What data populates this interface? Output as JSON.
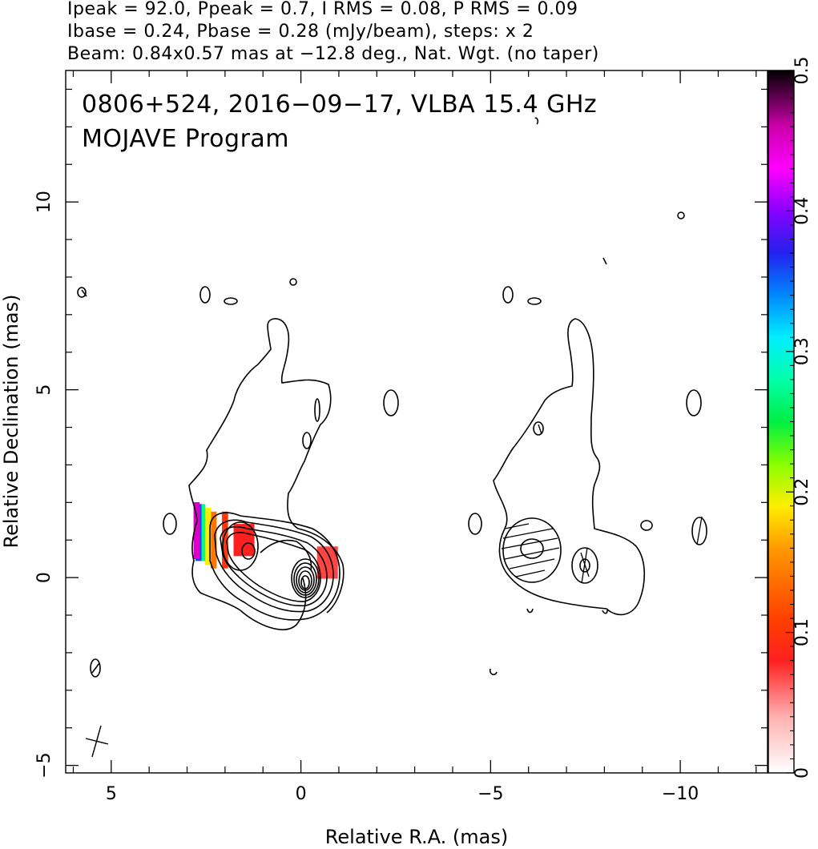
{
  "header": {
    "line1": "Ipeak = 92.0, Ppeak = 0.7, I RMS = 0.08, P RMS = 0.09",
    "line2": "Ibase = 0.24, Pbase = 0.28 (mJy/beam), steps: x 2",
    "line3": "Beam: 0.84x0.57 mas at −12.8 deg., Nat. Wgt. (no taper)"
  },
  "panel": {
    "line1": "0806+524, 2016−09−17, VLBA 15.4 GHz",
    "line2": "MOJAVE Program"
  },
  "chart_data": {
    "type": "contour",
    "xlabel": "Relative R.A. (mas)",
    "ylabel": "Relative Declination (mas)",
    "xlim": [
      6.2,
      -12.3
    ],
    "ylim": [
      -5.2,
      13.5
    ],
    "x_ticks": [
      5,
      0,
      -5,
      -10
    ],
    "x_tick_labels": [
      "5",
      "0",
      "−5",
      "−10"
    ],
    "y_ticks": [
      -5,
      0,
      5,
      10
    ],
    "y_tick_labels": [
      "−5",
      "0",
      "5",
      "10"
    ],
    "colorbar": {
      "min": 0,
      "max": 0.5,
      "ticks": [
        0,
        0.1,
        0.2,
        0.3,
        0.4,
        0.5
      ],
      "tick_labels": [
        "0",
        "0.1",
        "0.2",
        "0.3",
        "0.4",
        "0.5"
      ]
    },
    "total_intensity_panel": {
      "core": [
        0,
        0
      ],
      "contour_levels_mJy_per_beam": [
        0.24,
        0.48,
        0.96,
        1.92,
        3.84,
        7.68,
        15.36,
        30.72,
        61.44
      ],
      "fractional_polarization_patches": [
        {
          "x": -0.7,
          "y": 0.4,
          "value": 0.07
        },
        {
          "x": 1.5,
          "y": 1.0,
          "value": 0.08
        },
        {
          "x": 2.0,
          "y": 1.0,
          "value": 0.1
        },
        {
          "x": 2.3,
          "y": 1.0,
          "value": 0.14
        },
        {
          "x": 2.45,
          "y": 1.1,
          "value": 0.19
        },
        {
          "x": 2.6,
          "y": 1.2,
          "value": 0.27
        },
        {
          "x": 2.7,
          "y": 1.2,
          "value": 0.36
        },
        {
          "x": 2.75,
          "y": 1.25,
          "value": 0.45
        }
      ]
    },
    "polarization_panel": {
      "x_offset_mas": -8,
      "polarized_features": [
        {
          "x": -5.9,
          "y": 0.9
        },
        {
          "x": -7.4,
          "y": 0.45
        }
      ]
    },
    "beam": {
      "major_mas": 0.84,
      "minor_mas": 0.57,
      "pa_deg": -12.8,
      "x": 5.4,
      "y": -4.2
    }
  }
}
